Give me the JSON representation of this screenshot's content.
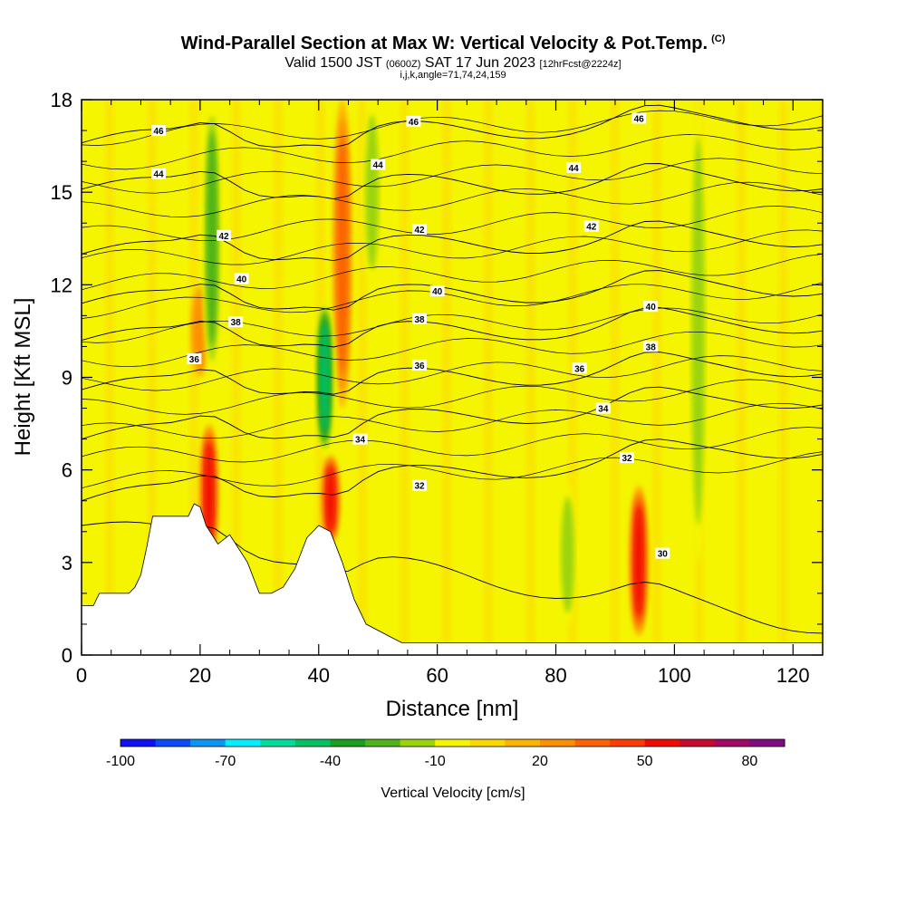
{
  "header": {
    "title": "Wind-Parallel Section at Max W: Vertical Velocity & Pot.Temp.",
    "title_tag": "(C)",
    "valid_prefix": "Valid 1500 JST",
    "valid_utc": "(0600Z)",
    "valid_date": "SAT 17 Jun 2023",
    "forecast": "[12hrFcst@2224z]",
    "params": "i,j,k,angle=71,74,24,159"
  },
  "chart_data": {
    "type": "heatmap",
    "xlabel": "Distance [nm]",
    "ylabel": "Height [Kft MSL]",
    "xlim": [
      0,
      125
    ],
    "ylim": [
      0,
      18
    ],
    "x_ticks": [
      0,
      20,
      40,
      60,
      80,
      100,
      120
    ],
    "y_ticks": [
      0,
      3,
      6,
      9,
      12,
      15,
      18
    ],
    "colorbar": {
      "title": "Vertical Velocity [cm/s]",
      "tick_labels": [
        "-100",
        "-70",
        "-40",
        "-10",
        "20",
        "50",
        "80"
      ],
      "tick_values": [
        -100,
        -70,
        -40,
        -10,
        20,
        50,
        80
      ],
      "range": [
        -100,
        90
      ],
      "colors": [
        "#1010f0",
        "#0a4cf5",
        "#0a96f5",
        "#00f0ff",
        "#00dc9c",
        "#00c064",
        "#1aa020",
        "#50b418",
        "#9cd40a",
        "#f5f500",
        "#fcd800",
        "#fcb400",
        "#fc9000",
        "#fc6400",
        "#fc3c00",
        "#f00c00",
        "#c80a32",
        "#a00a64",
        "#820a82"
      ]
    },
    "topography": [
      [
        0,
        1.6
      ],
      [
        2,
        1.6
      ],
      [
        3,
        2.0
      ],
      [
        8,
        2.0
      ],
      [
        9,
        2.2
      ],
      [
        10,
        2.6
      ],
      [
        11,
        3.5
      ],
      [
        12,
        4.5
      ],
      [
        18,
        4.5
      ],
      [
        19,
        4.9
      ],
      [
        20,
        4.8
      ],
      [
        21,
        4.2
      ],
      [
        23,
        3.6
      ],
      [
        25,
        3.9
      ],
      [
        28,
        3.0
      ],
      [
        30,
        2.0
      ],
      [
        32,
        2.0
      ],
      [
        34,
        2.2
      ],
      [
        36,
        2.8
      ],
      [
        38,
        3.8
      ],
      [
        40,
        4.2
      ],
      [
        42,
        4.0
      ],
      [
        44,
        3.0
      ],
      [
        46,
        1.8
      ],
      [
        48,
        1.0
      ],
      [
        52,
        0.6
      ],
      [
        54,
        0.4
      ],
      [
        125,
        0.4
      ]
    ],
    "vertical_velocity_features": [
      {
        "x": 21.5,
        "y0": 3.0,
        "y1": 7.5,
        "w_cm_s": 55
      },
      {
        "x": 42,
        "y0": 3.6,
        "y1": 6.5,
        "w_cm_s": 50
      },
      {
        "x": 94,
        "y0": 0.6,
        "y1": 5.5,
        "w_cm_s": 55
      },
      {
        "x": 44,
        "y0": 8.0,
        "y1": 18,
        "w_cm_s": 35
      },
      {
        "x": 20,
        "y0": 9.0,
        "y1": 12.0,
        "w_cm_s": 25
      },
      {
        "x": 41,
        "y0": 6.5,
        "y1": 11.5,
        "w_cm_s": -50
      },
      {
        "x": 22,
        "y0": 9.0,
        "y1": 18,
        "w_cm_s": -35
      },
      {
        "x": 104,
        "y0": 3.0,
        "y1": 18,
        "w_cm_s": -25
      },
      {
        "x": 49,
        "y0": 12,
        "y1": 18,
        "w_cm_s": -20
      },
      {
        "x": 82,
        "y0": 1.0,
        "y1": 5.5,
        "w_cm_s": -25
      }
    ],
    "pot_temp_contours": [
      {
        "label": "30",
        "y_left": 4.2,
        "y_right": 1.0,
        "label_x": 98,
        "label_y": 3.3
      },
      {
        "label": "32",
        "y_left": 5.0,
        "y_right": 6.8,
        "label_x": 57,
        "label_y": 5.5
      },
      {
        "label": "32",
        "y_left": 5.0,
        "y_right": 6.8,
        "label_x": 92,
        "label_y": 6.4
      },
      {
        "label": "34",
        "y_left": 7.0,
        "y_right": 8.4,
        "label_x": 47,
        "label_y": 7.0
      },
      {
        "label": "34",
        "y_left": 7.0,
        "y_right": 8.4,
        "label_x": 88,
        "label_y": 8.0
      },
      {
        "label": "36",
        "y_left": 8.6,
        "y_right": 9.4,
        "label_x": 19,
        "label_y": 9.6
      },
      {
        "label": "36",
        "y_left": 8.6,
        "y_right": 9.4,
        "label_x": 57,
        "label_y": 9.4
      },
      {
        "label": "36",
        "y_left": 8.6,
        "y_right": 9.4,
        "label_x": 84,
        "label_y": 9.3
      },
      {
        "label": "38",
        "y_left": 10.2,
        "y_right": 10.8,
        "label_x": 26,
        "label_y": 10.8
      },
      {
        "label": "38",
        "y_left": 10.2,
        "y_right": 10.8,
        "label_x": 57,
        "label_y": 10.9
      },
      {
        "label": "38",
        "y_left": 10.2,
        "y_right": 10.8,
        "label_x": 96,
        "label_y": 10.0
      },
      {
        "label": "40",
        "y_left": 11.4,
        "y_right": 12.0,
        "label_x": 27,
        "label_y": 12.2
      },
      {
        "label": "40",
        "y_left": 11.4,
        "y_right": 12.0,
        "label_x": 60,
        "label_y": 11.8
      },
      {
        "label": "40",
        "y_left": 11.4,
        "y_right": 12.0,
        "label_x": 96,
        "label_y": 11.3
      },
      {
        "label": "42",
        "y_left": 13.0,
        "y_right": 13.6,
        "label_x": 24,
        "label_y": 13.6
      },
      {
        "label": "42",
        "y_left": 13.0,
        "y_right": 13.6,
        "label_x": 57,
        "label_y": 13.8
      },
      {
        "label": "42",
        "y_left": 13.0,
        "y_right": 13.6,
        "label_x": 86,
        "label_y": 13.9
      },
      {
        "label": "44",
        "y_left": 15.1,
        "y_right": 15.4,
        "label_x": 13,
        "label_y": 15.6
      },
      {
        "label": "44",
        "y_left": 15.1,
        "y_right": 15.4,
        "label_x": 50,
        "label_y": 15.9
      },
      {
        "label": "44",
        "y_left": 15.1,
        "y_right": 15.4,
        "label_x": 83,
        "label_y": 15.8
      },
      {
        "label": "46",
        "y_left": 16.6,
        "y_right": 17.4,
        "label_x": 13,
        "label_y": 17.0
      },
      {
        "label": "46",
        "y_left": 16.6,
        "y_right": 17.4,
        "label_x": 56,
        "label_y": 17.3
      },
      {
        "label": "46",
        "y_left": 16.6,
        "y_right": 17.4,
        "label_x": 94,
        "label_y": 17.4
      }
    ]
  }
}
